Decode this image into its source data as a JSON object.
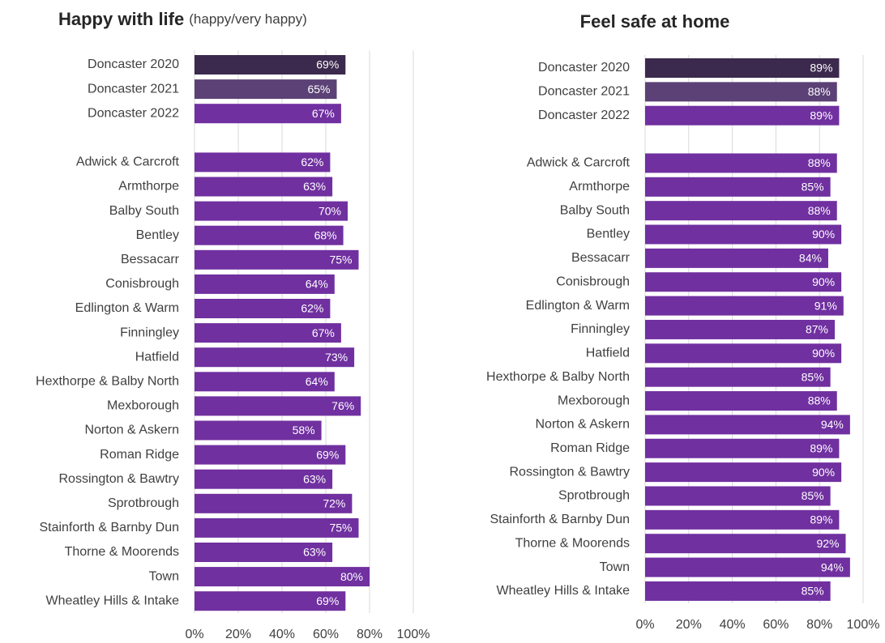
{
  "chart_data": [
    {
      "type": "barh",
      "title": "Happy with life",
      "subtitle": "(happy/very happy)",
      "categories": [
        "Doncaster 2020",
        "Doncaster 2021",
        "Doncaster 2022",
        null,
        "Adwick & Carcroft",
        "Armthorpe",
        "Balby South",
        "Bentley",
        "Bessacarr",
        "Conisbrough",
        "Edlington & Warm",
        "Finningley",
        "Hatfield",
        "Hexthorpe & Balby North",
        "Mexborough",
        "Norton & Askern",
        "Roman Ridge",
        "Rossington & Bawtry",
        "Sprotbrough",
        "Stainforth & Barnby Dun",
        "Thorne & Moorends",
        "Town",
        "Wheatley Hills & Intake"
      ],
      "values": [
        69,
        65,
        67,
        null,
        62,
        63,
        70,
        68,
        75,
        64,
        62,
        67,
        73,
        64,
        76,
        58,
        69,
        63,
        72,
        75,
        63,
        80,
        69
      ],
      "value_labels": [
        "69%",
        "65%",
        "67%",
        null,
        "62%",
        "63%",
        "70%",
        "68%",
        "75%",
        "64%",
        "62%",
        "67%",
        "73%",
        "64%",
        "76%",
        "58%",
        "69%",
        "63%",
        "72%",
        "75%",
        "63%",
        "80%",
        "69%"
      ],
      "colors": [
        "#3b2a4d",
        "#5b4175",
        "#7030a0",
        null,
        "#7030a0",
        "#7030a0",
        "#7030a0",
        "#7030a0",
        "#7030a0",
        "#7030a0",
        "#7030a0",
        "#7030a0",
        "#7030a0",
        "#7030a0",
        "#7030a0",
        "#7030a0",
        "#7030a0",
        "#7030a0",
        "#7030a0",
        "#7030a0",
        "#7030a0",
        "#7030a0",
        "#7030a0"
      ],
      "xlim": [
        0,
        100
      ],
      "xticks": [
        {
          "value": 0,
          "label": "0%"
        },
        {
          "value": 20,
          "label": "20%"
        },
        {
          "value": 40,
          "label": "40%"
        },
        {
          "value": 60,
          "label": "60%"
        },
        {
          "value": 80,
          "label": "80%"
        },
        {
          "value": 100,
          "label": "100%"
        }
      ],
      "grid": true
    },
    {
      "type": "barh",
      "title": "Feel safe at home",
      "categories": [
        "Doncaster 2020",
        "Doncaster 2021",
        "Doncaster 2022",
        null,
        "Adwick & Carcroft",
        "Armthorpe",
        "Balby South",
        "Bentley",
        "Bessacarr",
        "Conisbrough",
        "Edlington & Warm",
        "Finningley",
        "Hatfield",
        "Hexthorpe & Balby North",
        "Mexborough",
        "Norton & Askern",
        "Roman Ridge",
        "Rossington & Bawtry",
        "Sprotbrough",
        "Stainforth & Barnby Dun",
        "Thorne & Moorends",
        "Town",
        "Wheatley Hills & Intake"
      ],
      "values": [
        89,
        88,
        89,
        null,
        88,
        85,
        88,
        90,
        84,
        90,
        91,
        87,
        90,
        85,
        88,
        94,
        89,
        90,
        85,
        89,
        92,
        94,
        85
      ],
      "value_labels": [
        "89%",
        "88%",
        "89%",
        null,
        "88%",
        "85%",
        "88%",
        "90%",
        "84%",
        "90%",
        "91%",
        "87%",
        "90%",
        "85%",
        "88%",
        "94%",
        "89%",
        "90%",
        "85%",
        "89%",
        "92%",
        "94%",
        "85%"
      ],
      "colors": [
        "#3b2a4d",
        "#5b4175",
        "#7030a0",
        null,
        "#7030a0",
        "#7030a0",
        "#7030a0",
        "#7030a0",
        "#7030a0",
        "#7030a0",
        "#7030a0",
        "#7030a0",
        "#7030a0",
        "#7030a0",
        "#7030a0",
        "#7030a0",
        "#7030a0",
        "#7030a0",
        "#7030a0",
        "#7030a0",
        "#7030a0",
        "#7030a0",
        "#7030a0"
      ],
      "xlim": [
        0,
        100
      ],
      "xticks": [
        {
          "value": 0,
          "label": "0%"
        },
        {
          "value": 20,
          "label": "20%"
        },
        {
          "value": 40,
          "label": "40%"
        },
        {
          "value": 60,
          "label": "60%"
        },
        {
          "value": 80,
          "label": "80%"
        },
        {
          "value": 100,
          "label": "100%"
        }
      ],
      "grid": true
    }
  ]
}
